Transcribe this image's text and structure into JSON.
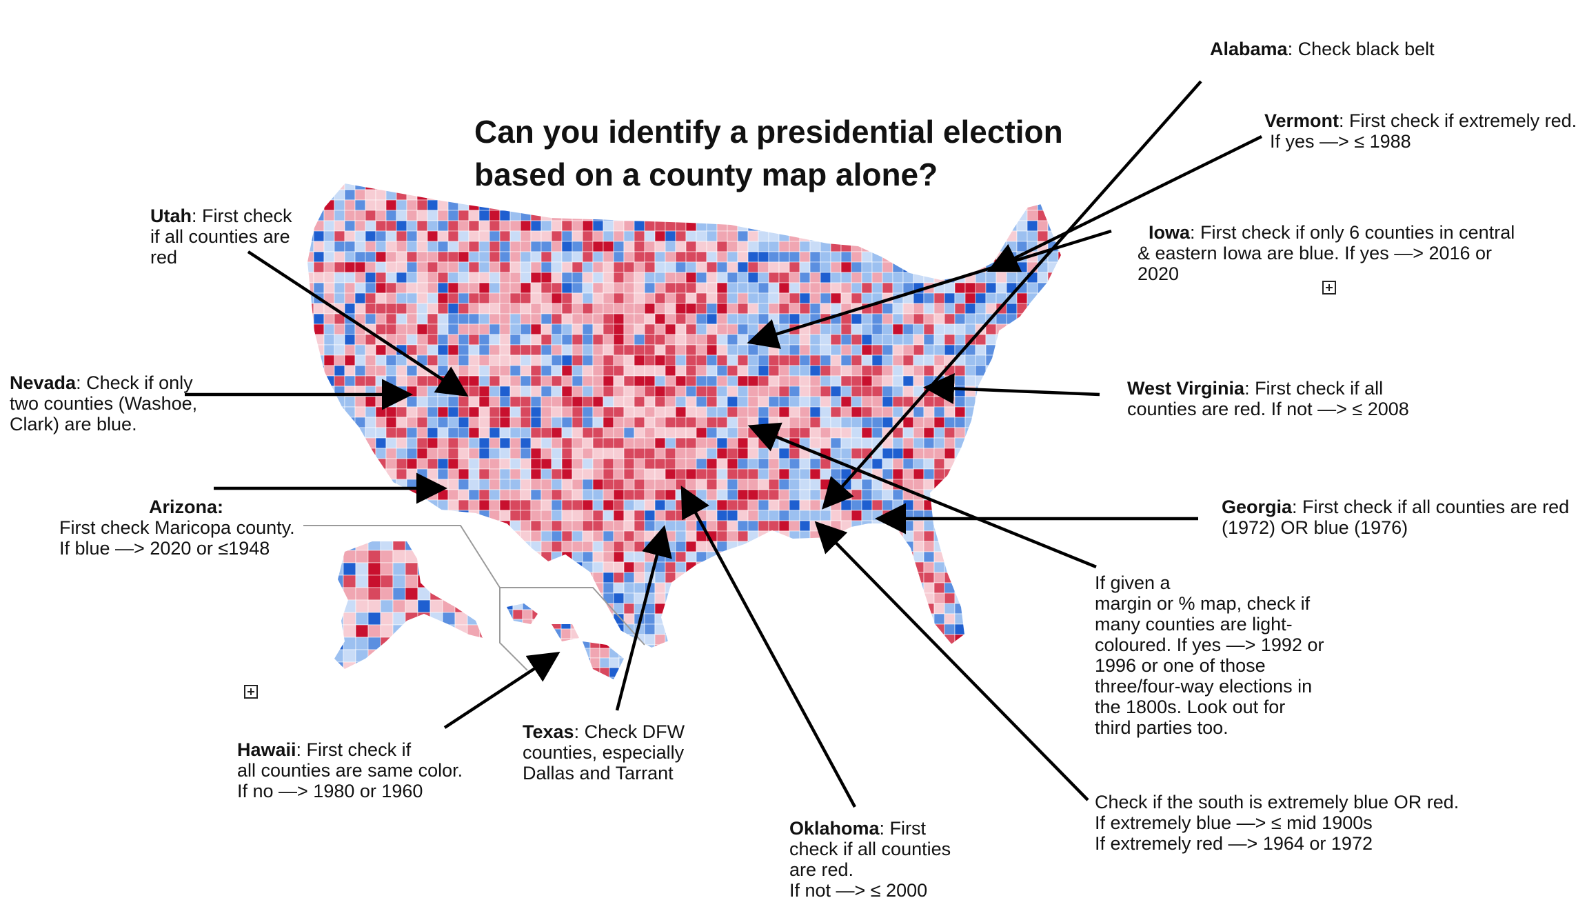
{
  "title": "Can you identify a presidential election based on a county map alone?",
  "colors": {
    "dark_red": "#c8102e",
    "red": "#d8485e",
    "light_red": "#f0a6b2",
    "pale_red": "#f7cdd4",
    "dark_blue": "#1f5fd0",
    "blue": "#5b8fe0",
    "light_blue": "#9cc0f0",
    "pale_blue": "#c9dcf7",
    "arrow": "#000000",
    "inset_border": "#9a9a9a"
  },
  "icons": [
    "expand-plus-icon",
    "expand-plus-icon"
  ],
  "annotations": {
    "utah": {
      "state": "Utah",
      "lines": [
        ": First check",
        "if all counties are",
        "red"
      ]
    },
    "nevada": {
      "state": "Nevada",
      "lines": [
        ": Check if only",
        "two counties (Washoe,",
        "Clark) are blue."
      ]
    },
    "arizona": {
      "state": "Arizona:",
      "lines": [
        "First check Maricopa county.",
        "If blue —> 2020 or ≤1948"
      ]
    },
    "hawaii": {
      "state": "Hawaii",
      "lines": [
        ": First check if",
        "all counties are same color.",
        "If no —> 1980 or 1960"
      ]
    },
    "texas": {
      "state": "Texas",
      "lines": [
        ": Check DFW",
        "counties, especially",
        "Dallas and Tarrant"
      ]
    },
    "oklahoma": {
      "state": "Oklahoma",
      "lines": [
        ": First",
        "check if all counties",
        "are red.",
        "If not —> ≤ 2000"
      ]
    },
    "alabama": {
      "state": "Alabama",
      "lines": [
        ": Check black belt"
      ]
    },
    "vermont": {
      "state": "Vermont",
      "lines": [
        ": First check if extremely red.",
        "If yes —> ≤ 1988"
      ]
    },
    "iowa": {
      "state": "Iowa",
      "lines": [
        ": First check if only 6 counties in central",
        "& eastern Iowa are blue. If yes —> 2016 or",
        "2020"
      ]
    },
    "west_virginia": {
      "state": "West Virginia",
      "lines": [
        ": First check if all",
        "counties are red. If not —> ≤ 2008"
      ]
    },
    "georgia": {
      "state": "Georgia",
      "lines": [
        ": First check if all counties are red",
        "(1972) OR blue (1976)"
      ]
    },
    "margin": {
      "lines": [
        "If given a",
        "margin or % map, check if",
        "many counties are light-",
        "coloured. If yes —> 1992 or",
        "1996 or one of those",
        "three/four-way elections in",
        "the 1800s. Look out for",
        "third parties too."
      ]
    },
    "south": {
      "lines": [
        "Check if the south is extremely blue OR red.",
        "If extremely blue —> ≤ mid 1900s",
        "If extremely red —> 1964 or 1972"
      ]
    }
  }
}
